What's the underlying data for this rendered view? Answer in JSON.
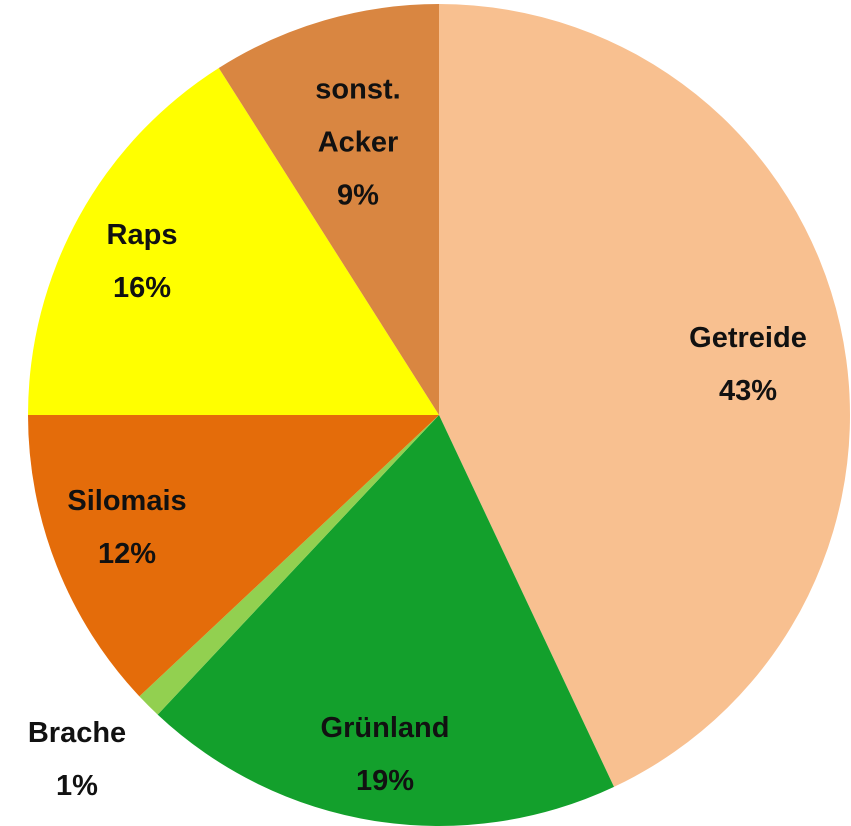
{
  "chart_data": {
    "type": "pie",
    "categories": [
      "Getreide",
      "Grünland",
      "Brache",
      "Silomais",
      "Raps",
      "sonst. Acker"
    ],
    "values": [
      43,
      19,
      1,
      12,
      16,
      9
    ],
    "value_labels": [
      "43%",
      "19%",
      "1%",
      "12%",
      "16%",
      "9%"
    ],
    "colors": [
      "#f8c090",
      "#13a02c",
      "#92d050",
      "#e46c0a",
      "#ffff00",
      "#d98641"
    ]
  }
}
